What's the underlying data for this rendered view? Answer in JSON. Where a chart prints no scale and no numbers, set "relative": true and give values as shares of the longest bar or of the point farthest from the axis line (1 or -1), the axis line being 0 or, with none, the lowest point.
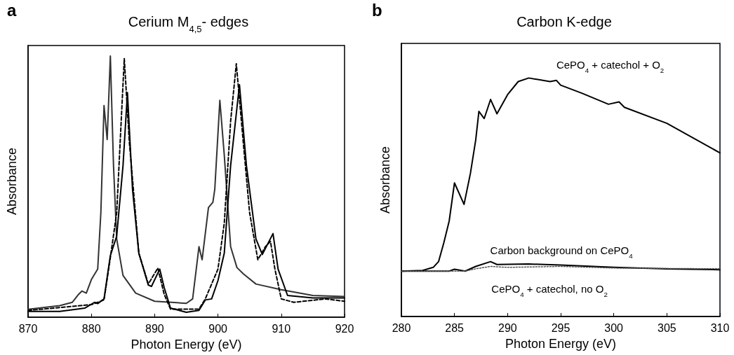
{
  "chart_data": [
    {
      "type": "line",
      "title": "Cerium M$_{4,5}$- edges",
      "xlabel": "Photon Energy (eV)",
      "ylabel": "Absorbance",
      "relative": true,
      "xlim": [
        870,
        920
      ],
      "xticks": [
        870,
        880,
        890,
        900,
        910,
        920
      ],
      "tick_labels": "x",
      "grid": false,
      "legend": false,
      "marker": "none",
      "annotations": [
        "a"
      ],
      "series": [
        {
          "color": "#333333",
          "line_style": "solid",
          "x": [
            870,
            875,
            877,
            878,
            878.5,
            879.2,
            880,
            881,
            881.5,
            882,
            882.5,
            883,
            883.5,
            884,
            885,
            887,
            890,
            895,
            896,
            897,
            897.5,
            898.5,
            899.2,
            899.5,
            900.3,
            901,
            902,
            903,
            904,
            906,
            910,
            915,
            920
          ],
          "values": [
            0.03,
            0.044,
            0.057,
            0.088,
            0.1,
            0.092,
            0.144,
            0.184,
            0.4,
            0.81,
            0.68,
            1.0,
            0.58,
            0.3,
            0.16,
            0.092,
            0.061,
            0.053,
            0.07,
            0.27,
            0.22,
            0.42,
            0.44,
            0.49,
            0.83,
            0.62,
            0.27,
            0.19,
            0.166,
            0.127,
            0.105,
            0.083,
            0.079
          ]
        },
        {
          "color": "#000000",
          "line_style": "solid",
          "x": [
            870,
            875,
            879,
            880.5,
            881,
            882,
            883,
            884,
            885,
            885.7,
            886.5,
            887.5,
            889,
            889.5,
            890.8,
            891.5,
            892.5,
            895,
            897,
            898,
            899,
            900,
            901,
            902,
            903.4,
            904.5,
            906,
            907,
            908.7,
            909.5,
            911,
            915,
            920
          ],
          "values": [
            0.022,
            0.022,
            0.035,
            0.057,
            0.052,
            0.07,
            0.236,
            0.31,
            0.58,
            0.86,
            0.49,
            0.245,
            0.123,
            0.118,
            0.184,
            0.114,
            0.035,
            0.019,
            0.026,
            0.066,
            0.07,
            0.14,
            0.245,
            0.58,
            0.89,
            0.58,
            0.3,
            0.24,
            0.32,
            0.184,
            0.083,
            0.074,
            0.074
          ]
        },
        {
          "color": "#000000",
          "line_style": "dashed",
          "x": [
            870,
            880,
            882,
            883,
            884,
            885.2,
            886,
            887.5,
            889,
            890.5,
            891.5,
            892.5,
            897,
            898,
            900,
            901,
            902,
            902.9,
            904,
            905,
            906.3,
            907.5,
            908.3,
            909,
            910,
            912,
            917,
            920
          ],
          "values": [
            0.026,
            0.048,
            0.066,
            0.228,
            0.4,
            0.99,
            0.67,
            0.245,
            0.127,
            0.188,
            0.088,
            0.031,
            0.031,
            0.07,
            0.184,
            0.36,
            0.75,
            0.97,
            0.67,
            0.4,
            0.22,
            0.27,
            0.29,
            0.184,
            0.07,
            0.057,
            0.07,
            0.061
          ]
        }
      ]
    },
    {
      "type": "line",
      "title": "Carbon K-edge",
      "xlabel": "Photon Energy (eV)",
      "ylabel": "Absorbance",
      "relative": true,
      "xlim": [
        280,
        310
      ],
      "xticks": [
        280,
        285,
        290,
        295,
        300,
        305,
        310
      ],
      "tick_labels": "x",
      "grid": false,
      "legend": false,
      "marker": "none",
      "annotations": [
        "b"
      ],
      "series": [
        {
          "name": "CePO$_{4}$ + catechol + O$_{2}$",
          "color": "#000000",
          "line_style": "solid",
          "x": [
            280,
            282,
            283,
            283.5,
            284,
            284.5,
            285,
            285.9,
            286.5,
            287,
            287.3,
            287.8,
            288.4,
            289,
            290,
            291,
            292,
            294,
            294.6,
            295,
            297,
            299.5,
            300.5,
            301,
            305,
            310
          ],
          "values": [
            0.19,
            0.193,
            0.206,
            0.23,
            0.31,
            0.4,
            0.56,
            0.47,
            0.6,
            0.74,
            0.86,
            0.83,
            0.91,
            0.85,
            0.93,
            0.985,
            1.0,
            0.985,
            0.99,
            0.97,
            0.936,
            0.89,
            0.9,
            0.877,
            0.81,
            0.686
          ]
        },
        {
          "name": "Carbon background on CePO$_{4}$",
          "color": "#000000",
          "line_style": "solid",
          "x": [
            280,
            284.5,
            285,
            286,
            287,
            288.4,
            289,
            292,
            295,
            300,
            305,
            310
          ],
          "values": [
            0.19,
            0.19,
            0.198,
            0.19,
            0.21,
            0.23,
            0.218,
            0.22,
            0.216,
            0.206,
            0.2,
            0.196
          ]
        },
        {
          "name": "CePO$_{4}$ + catechol, no O$_{2}$",
          "color": "#555555",
          "line_style": "dotted",
          "x": [
            280,
            286,
            287,
            288.4,
            290,
            295,
            300,
            310
          ],
          "values": [
            0.19,
            0.19,
            0.2,
            0.21,
            0.206,
            0.21,
            0.203,
            0.2
          ]
        }
      ]
    }
  ]
}
